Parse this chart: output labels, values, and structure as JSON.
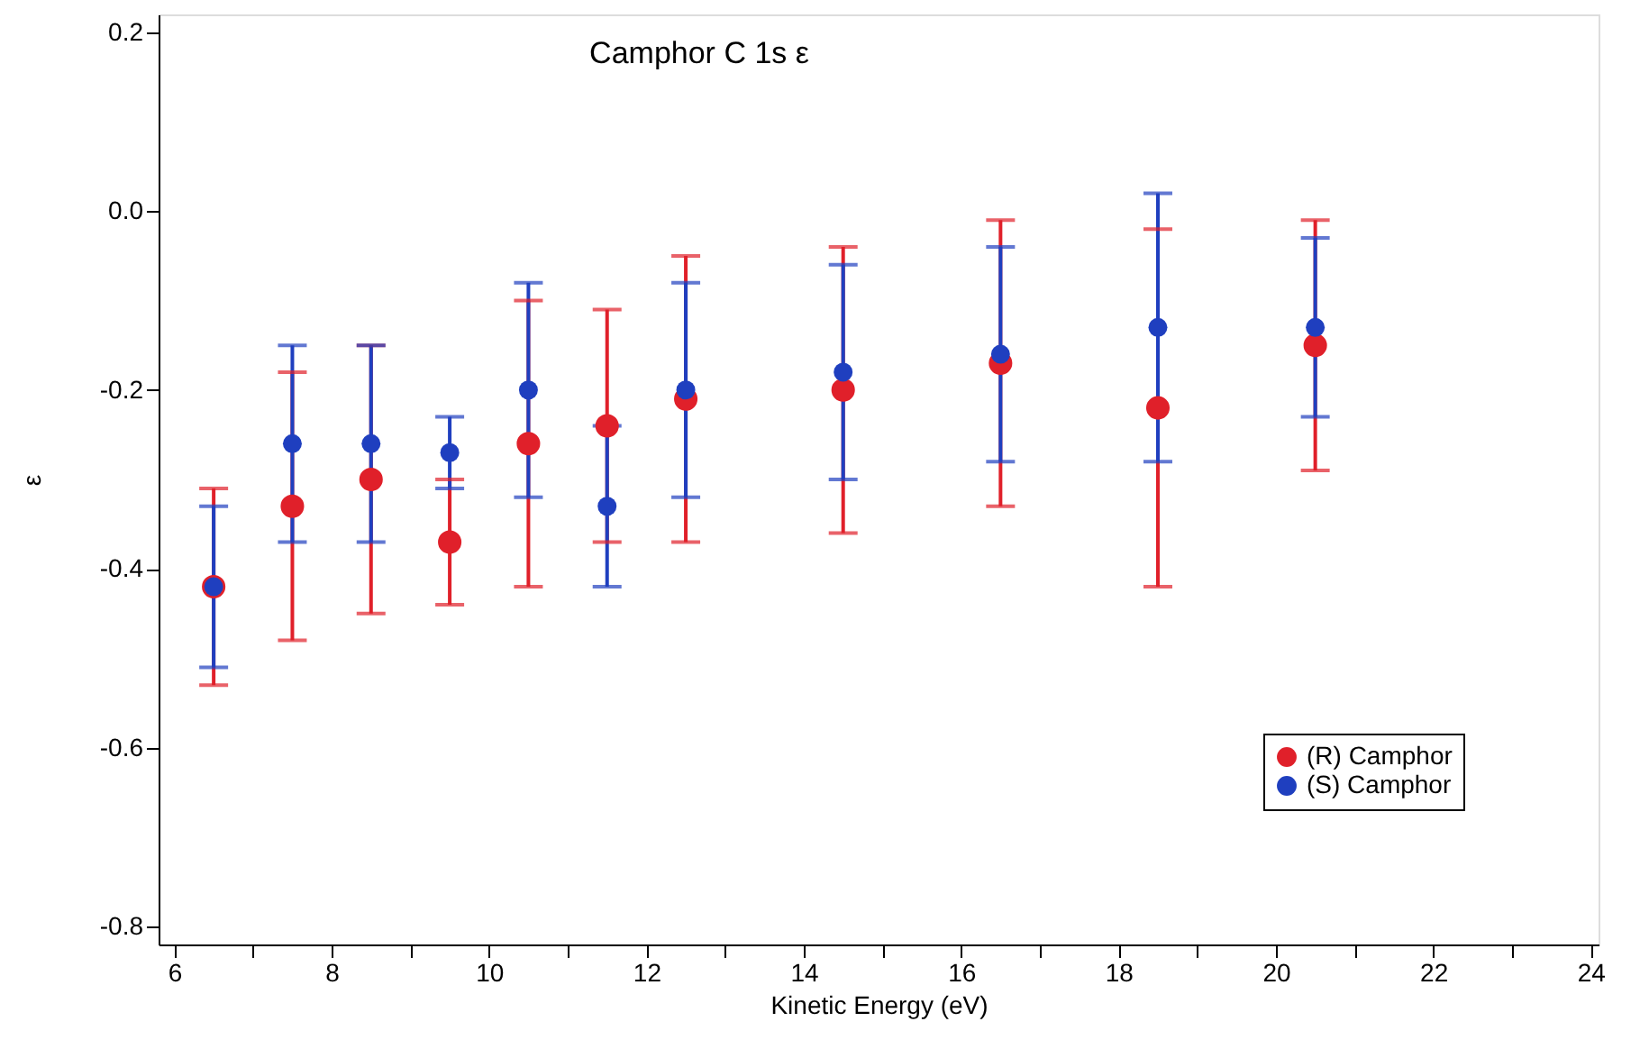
{
  "chart_data": {
    "type": "scatter",
    "title": "Camphor C 1s ε",
    "xlabel": "Kinetic Energy (eV)",
    "ylabel": "ε",
    "x": [
      6.5,
      7.5,
      8.5,
      9.5,
      10.5,
      11.5,
      12.5,
      14.5,
      16.5,
      18.5,
      20.5
    ],
    "series": [
      {
        "name": "(R) Camphor",
        "color": "#e0202a",
        "values": [
          -0.42,
          -0.33,
          -0.3,
          -0.37,
          -0.26,
          -0.24,
          -0.21,
          -0.2,
          -0.17,
          -0.22,
          -0.15
        ],
        "errors": [
          0.11,
          0.15,
          0.15,
          0.07,
          0.16,
          0.13,
          0.16,
          0.16,
          0.16,
          0.2,
          0.14
        ]
      },
      {
        "name": "(S) Camphor",
        "color": "#1f3fbf",
        "values": [
          -0.42,
          -0.26,
          -0.26,
          -0.27,
          -0.2,
          -0.33,
          -0.2,
          -0.18,
          -0.16,
          -0.13,
          -0.13
        ],
        "errors": [
          0.09,
          0.11,
          0.11,
          0.04,
          0.12,
          0.09,
          0.12,
          0.12,
          0.12,
          0.15,
          0.1
        ]
      }
    ],
    "xlim": [
      5.8,
      24.1
    ],
    "ylim": [
      -0.82,
      0.22
    ],
    "xticks": [
      6,
      {
        "value": 7,
        "label": null
      },
      8,
      {
        "value": 9,
        "label": null
      },
      10,
      {
        "value": 11,
        "label": null
      },
      12,
      {
        "value": 13,
        "label": null
      },
      14,
      {
        "value": 15,
        "label": null
      },
      16,
      {
        "value": 17,
        "label": null
      },
      18,
      {
        "value": 19,
        "label": null
      },
      20,
      {
        "value": 21,
        "label": null
      },
      22,
      {
        "value": 23,
        "label": null
      },
      24
    ],
    "yticks": [
      {
        "value": 0.2,
        "label": "0.2"
      },
      {
        "value": 0.0,
        "label": "0.0"
      },
      {
        "value": -0.2,
        "label": "-0.2"
      },
      {
        "value": -0.4,
        "label": "-0.4"
      },
      {
        "value": -0.6,
        "label": "-0.6"
      },
      {
        "value": -0.8,
        "label": "-0.8"
      }
    ],
    "grid": false,
    "legend": "bottom right",
    "marker": "circle"
  }
}
